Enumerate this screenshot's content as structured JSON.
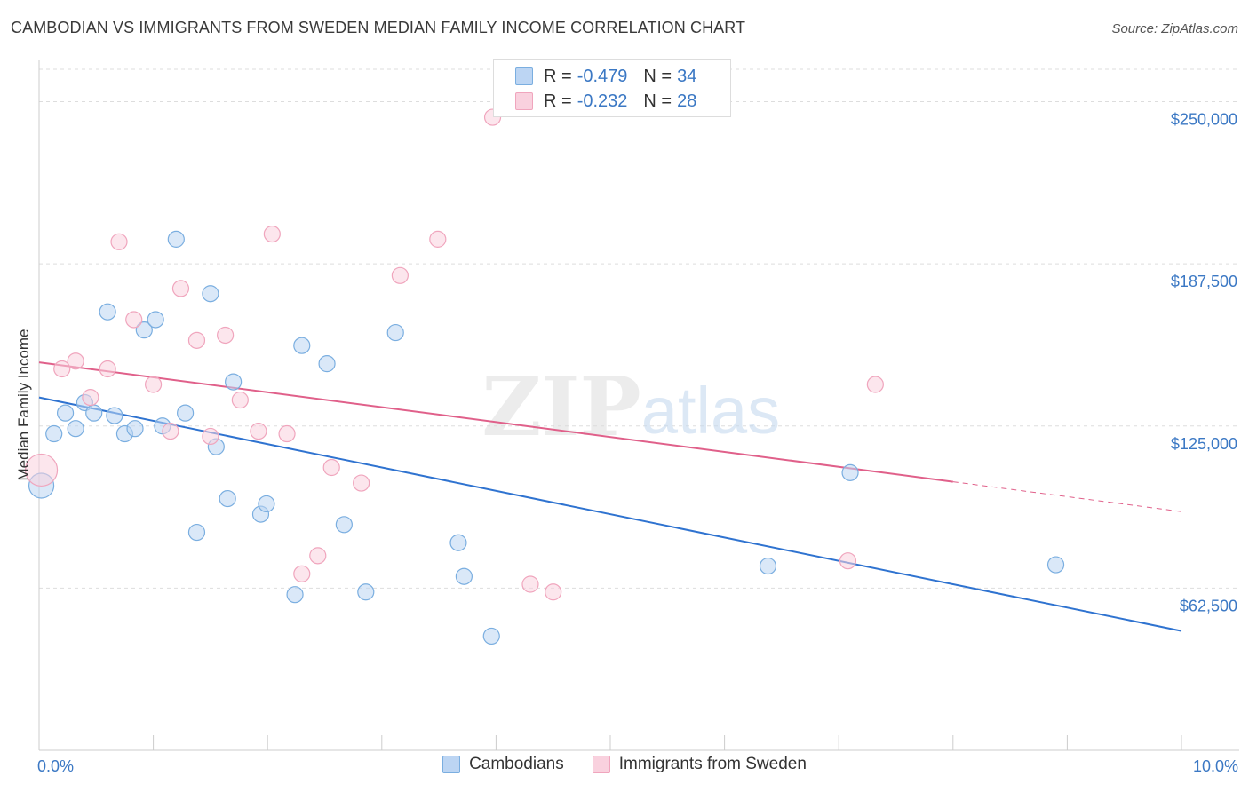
{
  "chart_data": {
    "type": "scatter",
    "title": "CAMBODIAN VS IMMIGRANTS FROM SWEDEN MEDIAN FAMILY INCOME CORRELATION CHART",
    "source": "Source: ZipAtlas.com",
    "watermark": {
      "zip": "ZIP",
      "atlas": "atlas"
    },
    "ylabel": "Median Family Income",
    "xlabel": "",
    "xlim": [
      0,
      10
    ],
    "ylim": [
      0,
      262500
    ],
    "x_tick_labels": [
      {
        "value": 0,
        "label": "0.0%"
      },
      {
        "value": 10,
        "label": "10.0%"
      }
    ],
    "y_ticks": [
      {
        "value": 62500,
        "label": "$62,500"
      },
      {
        "value": 125000,
        "label": "$125,000"
      },
      {
        "value": 187500,
        "label": "$187,500"
      },
      {
        "value": 250000,
        "label": "$250,000"
      }
    ],
    "legend_top": [
      {
        "r_label": "R = ",
        "r_value": "-0.479",
        "n_label": "N = ",
        "n_value": "34"
      },
      {
        "r_label": "R = ",
        "r_value": "-0.232",
        "n_label": "N = ",
        "n_value": "28"
      }
    ],
    "series": [
      {
        "name": "Cambodians",
        "color": "#7aaee0",
        "fill": "#bcd5f3",
        "line_color": "#2f73d0",
        "trend": {
          "x0": 0,
          "y0": 136000,
          "x1": 10,
          "y1": 46000,
          "dash_from": null
        },
        "points": [
          [
            0.02,
            102000,
            14
          ],
          [
            0.13,
            122000,
            9
          ],
          [
            0.23,
            130000,
            9
          ],
          [
            0.32,
            124000,
            9
          ],
          [
            0.4,
            134000,
            9
          ],
          [
            0.48,
            130000,
            9
          ],
          [
            0.6,
            169000,
            9
          ],
          [
            0.66,
            129000,
            9
          ],
          [
            0.75,
            122000,
            9
          ],
          [
            0.84,
            124000,
            9
          ],
          [
            0.92,
            162000,
            9
          ],
          [
            1.02,
            166000,
            9
          ],
          [
            1.08,
            125000,
            9
          ],
          [
            1.2,
            197000,
            9
          ],
          [
            1.28,
            130000,
            9
          ],
          [
            1.38,
            84000,
            9
          ],
          [
            1.5,
            176000,
            9
          ],
          [
            1.55,
            117000,
            9
          ],
          [
            1.65,
            97000,
            9
          ],
          [
            1.7,
            142000,
            9
          ],
          [
            1.94,
            91000,
            9
          ],
          [
            1.99,
            95000,
            9
          ],
          [
            2.24,
            60000,
            9
          ],
          [
            2.3,
            156000,
            9
          ],
          [
            2.52,
            149000,
            9
          ],
          [
            2.67,
            87000,
            9
          ],
          [
            2.86,
            61000,
            9
          ],
          [
            3.12,
            161000,
            9
          ],
          [
            3.67,
            80000,
            9
          ],
          [
            3.72,
            67000,
            9
          ],
          [
            3.96,
            44000,
            9
          ],
          [
            6.38,
            71000,
            9
          ],
          [
            7.1,
            107000,
            9
          ],
          [
            8.9,
            71500,
            9
          ]
        ]
      },
      {
        "name": "Immigrants from Sweden",
        "color": "#f0a5bd",
        "fill": "#f9d1de",
        "line_color": "#e0608a",
        "trend": {
          "x0": 0,
          "y0": 149500,
          "x1": 10,
          "y1": 92000,
          "dash_from": 8
        },
        "points": [
          [
            0.02,
            108000,
            18
          ],
          [
            0.2,
            147000,
            9
          ],
          [
            0.32,
            150000,
            9
          ],
          [
            0.45,
            136000,
            9
          ],
          [
            0.6,
            147000,
            9
          ],
          [
            0.7,
            196000,
            9
          ],
          [
            0.83,
            166000,
            9
          ],
          [
            1.0,
            141000,
            9
          ],
          [
            1.15,
            123000,
            9
          ],
          [
            1.24,
            178000,
            9
          ],
          [
            1.38,
            158000,
            9
          ],
          [
            1.5,
            121000,
            9
          ],
          [
            1.63,
            160000,
            9
          ],
          [
            1.76,
            135000,
            9
          ],
          [
            1.92,
            123000,
            9
          ],
          [
            2.04,
            199000,
            9
          ],
          [
            2.17,
            122000,
            9
          ],
          [
            2.3,
            68000,
            9
          ],
          [
            2.44,
            75000,
            9
          ],
          [
            2.56,
            109000,
            9
          ],
          [
            2.82,
            103000,
            9
          ],
          [
            3.16,
            183000,
            9
          ],
          [
            3.49,
            197000,
            9
          ],
          [
            3.97,
            244000,
            9
          ],
          [
            4.3,
            64000,
            9
          ],
          [
            4.5,
            61000,
            9
          ],
          [
            7.08,
            73000,
            9
          ],
          [
            7.32,
            141000,
            9
          ]
        ]
      }
    ]
  }
}
